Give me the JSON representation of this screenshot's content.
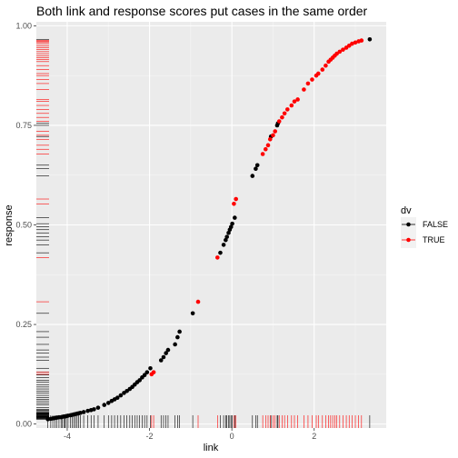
{
  "chart_data": {
    "type": "scatter",
    "title": "Both link and response scores put cases in the same order",
    "xlabel": "link",
    "ylabel": "response",
    "xlim": [
      -4.75,
      3.75
    ],
    "ylim": [
      -0.01,
      1.01
    ],
    "x_ticks": [
      -4,
      -2,
      0,
      2
    ],
    "x_tick_labels": [
      "-4",
      "-2",
      "0",
      "2"
    ],
    "y_ticks": [
      0.0,
      0.25,
      0.5,
      0.75,
      1.0
    ],
    "y_tick_labels": [
      "0.00",
      "0.25",
      "0.50",
      "0.75",
      "1.00"
    ],
    "legend": {
      "title": "dv",
      "position": "right",
      "entries": [
        "FALSE",
        "TRUE"
      ]
    },
    "colors": {
      "FALSE": "#000000",
      "TRUE": "#ff0000",
      "panel": "#ebebeb",
      "grid": "#ffffff"
    },
    "curve": "logistic",
    "series": [
      {
        "name": "FALSE",
        "x": [
          -4.47,
          -4.4,
          -4.35,
          -4.3,
          -4.25,
          -4.2,
          -4.15,
          -4.12,
          -4.08,
          -4.05,
          -4.02,
          -3.98,
          -3.92,
          -3.88,
          -3.84,
          -3.8,
          -3.76,
          -3.72,
          -3.68,
          -3.6,
          -3.5,
          -3.42,
          -3.35,
          -3.25,
          -3.1,
          -3.0,
          -2.92,
          -2.85,
          -2.78,
          -2.7,
          -2.62,
          -2.55,
          -2.48,
          -2.42,
          -2.36,
          -2.3,
          -2.24,
          -2.18,
          -2.12,
          -2.06,
          -1.98,
          -1.72,
          -1.66,
          -1.6,
          -1.55,
          -1.38,
          -1.32,
          -1.27,
          -0.95,
          -0.28,
          -0.2,
          -0.15,
          -0.12,
          -0.08,
          -0.05,
          -0.02,
          0.01,
          0.07,
          0.5,
          0.58,
          0.62,
          0.95,
          1.1,
          1.12,
          3.35
        ],
        "y": [
          0.012,
          0.013,
          0.014,
          0.015,
          0.016,
          0.017,
          0.017,
          0.018,
          0.019,
          0.019,
          0.02,
          0.021,
          0.022,
          0.023,
          0.024,
          0.025,
          0.026,
          0.027,
          0.028,
          0.03,
          0.033,
          0.035,
          0.037,
          0.041,
          0.048,
          0.053,
          0.058,
          0.062,
          0.066,
          0.072,
          0.078,
          0.083,
          0.088,
          0.093,
          0.099,
          0.105,
          0.11,
          0.117,
          0.123,
          0.13,
          0.14,
          0.16,
          0.168,
          0.178,
          0.186,
          0.2,
          0.218,
          0.232,
          0.278,
          0.43,
          0.45,
          0.462,
          0.47,
          0.48,
          0.488,
          0.495,
          0.503,
          0.518,
          0.623,
          0.641,
          0.65,
          0.722,
          0.75,
          0.755,
          0.966
        ]
      },
      {
        "name": "TRUE",
        "x": [
          -1.95,
          -1.9,
          -0.82,
          -0.35,
          0.05,
          0.1,
          0.75,
          0.82,
          0.88,
          0.93,
          1.0,
          1.05,
          1.15,
          1.22,
          1.28,
          1.35,
          1.45,
          1.52,
          1.6,
          1.75,
          1.85,
          1.95,
          2.05,
          2.1,
          2.2,
          2.28,
          2.35,
          2.4,
          2.45,
          2.5,
          2.55,
          2.62,
          2.7,
          2.78,
          2.85,
          2.92,
          3.0,
          3.08,
          3.15
        ],
        "y": [
          0.125,
          0.13,
          0.307,
          0.418,
          0.553,
          0.565,
          0.678,
          0.69,
          0.7,
          0.715,
          0.725,
          0.735,
          0.76,
          0.77,
          0.78,
          0.79,
          0.8,
          0.81,
          0.815,
          0.84,
          0.855,
          0.865,
          0.875,
          0.88,
          0.89,
          0.9,
          0.91,
          0.915,
          0.92,
          0.925,
          0.93,
          0.935,
          0.94,
          0.945,
          0.95,
          0.955,
          0.958,
          0.961,
          0.963
        ]
      }
    ]
  }
}
